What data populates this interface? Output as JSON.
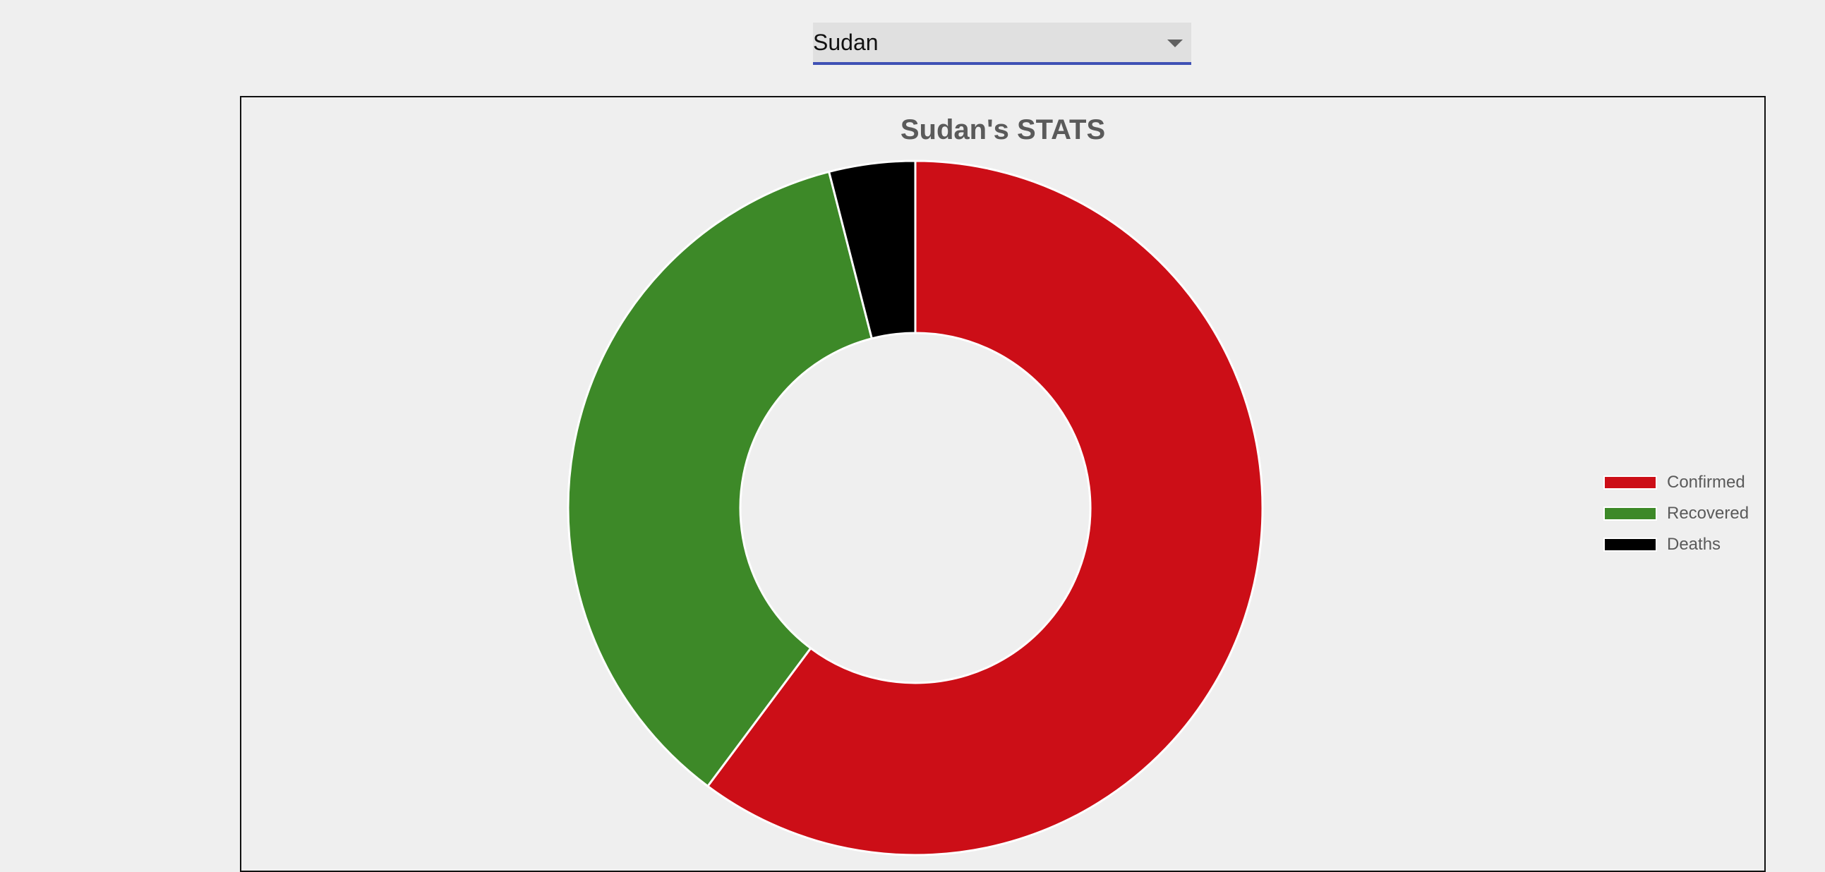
{
  "country_select": {
    "selected": "Sudan"
  },
  "chart_data": {
    "type": "pie",
    "title": "Sudan's STATS",
    "categories": [
      "Confirmed",
      "Recovered",
      "Deaths"
    ],
    "values": [
      60.2,
      35.8,
      4.0
    ],
    "colors": [
      "#cc0e17",
      "#3d8928",
      "#000000"
    ],
    "legend_position": "right",
    "donut": true
  }
}
